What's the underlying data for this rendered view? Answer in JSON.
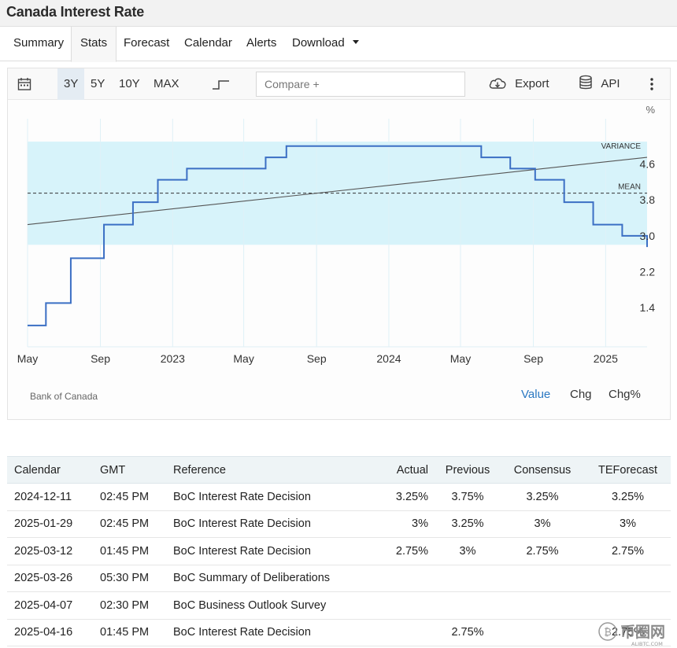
{
  "page": {
    "title": "Canada Interest Rate"
  },
  "tabs": [
    {
      "label": "Summary"
    },
    {
      "label": "Stats",
      "active": true
    },
    {
      "label": "Forecast"
    },
    {
      "label": "Calendar"
    },
    {
      "label": "Alerts"
    },
    {
      "label": "Download"
    }
  ],
  "toolbar": {
    "ranges": [
      "3Y",
      "5Y",
      "10Y",
      "MAX"
    ],
    "active_range": "3Y",
    "compare_placeholder": "Compare +",
    "export_label": "Export",
    "api_label": "API"
  },
  "chart_data": {
    "type": "line",
    "step": true,
    "unit_label": "%",
    "y_ticks": [
      1.4,
      2.2,
      3.0,
      3.8,
      4.6
    ],
    "ylim": [
      0.7,
      5.4
    ],
    "x_ticks": [
      "May",
      "Sep",
      "2023",
      "May",
      "Sep",
      "2024",
      "May",
      "Sep",
      "2025"
    ],
    "x_tick_dates": [
      "2022-05-01",
      "2022-09-01",
      "2023-01-01",
      "2023-05-01",
      "2023-09-01",
      "2024-01-01",
      "2024-05-01",
      "2024-09-01",
      "2025-01-01"
    ],
    "xlim": [
      "2022-05-01",
      "2025-03-12"
    ],
    "series": [
      {
        "points": [
          [
            "2022-05-01",
            1.0
          ],
          [
            "2022-06-01",
            1.5
          ],
          [
            "2022-07-13",
            2.5
          ],
          [
            "2022-09-07",
            3.25
          ],
          [
            "2022-10-26",
            3.75
          ],
          [
            "2022-12-07",
            4.25
          ],
          [
            "2023-01-25",
            4.5
          ],
          [
            "2023-06-07",
            4.75
          ],
          [
            "2023-07-12",
            5.0
          ],
          [
            "2024-06-05",
            4.75
          ],
          [
            "2024-07-24",
            4.5
          ],
          [
            "2024-09-04",
            4.25
          ],
          [
            "2024-10-23",
            3.75
          ],
          [
            "2024-12-11",
            3.25
          ],
          [
            "2025-01-29",
            3.0
          ],
          [
            "2025-03-12",
            2.75
          ]
        ]
      }
    ],
    "trend_line": [
      [
        "2022-05-01",
        3.25
      ],
      [
        "2025-03-12",
        4.75
      ]
    ],
    "mean": 3.95,
    "variance_band": [
      2.8,
      5.1
    ],
    "annotations": [
      "VARIANCE",
      "MEAN"
    ],
    "source": "Bank of Canada",
    "modes": [
      "Value",
      "Chg",
      "Chg%"
    ],
    "active_mode": "Value",
    "colors": {
      "line": "#3b6fc4",
      "band": "#d7f3fa",
      "trend": "#555555",
      "mean": "#333333"
    }
  },
  "calendar": {
    "headers": [
      "Calendar",
      "GMT",
      "Reference",
      "Actual",
      "Previous",
      "Consensus",
      "TEForecast"
    ],
    "rows": [
      [
        "2024-12-11",
        "02:45 PM",
        "BoC Interest Rate Decision",
        "3.25%",
        "3.75%",
        "3.25%",
        "3.25%"
      ],
      [
        "2025-01-29",
        "02:45 PM",
        "BoC Interest Rate Decision",
        "3%",
        "3.25%",
        "3%",
        "3%"
      ],
      [
        "2025-03-12",
        "01:45 PM",
        "BoC Interest Rate Decision",
        "2.75%",
        "3%",
        "2.75%",
        "2.75%"
      ],
      [
        "2025-03-26",
        "05:30 PM",
        "BoC Summary of Deliberations",
        "",
        "",
        "",
        ""
      ],
      [
        "2025-04-07",
        "02:30 PM",
        "BoC Business Outlook Survey",
        "",
        "",
        "",
        ""
      ],
      [
        "2025-04-16",
        "01:45 PM",
        "BoC Interest Rate Decision",
        "",
        "2.75%",
        "",
        "2.75%"
      ]
    ]
  },
  "watermark": {
    "text": "币圈网",
    "subtext": "ALIBTC.COM"
  }
}
